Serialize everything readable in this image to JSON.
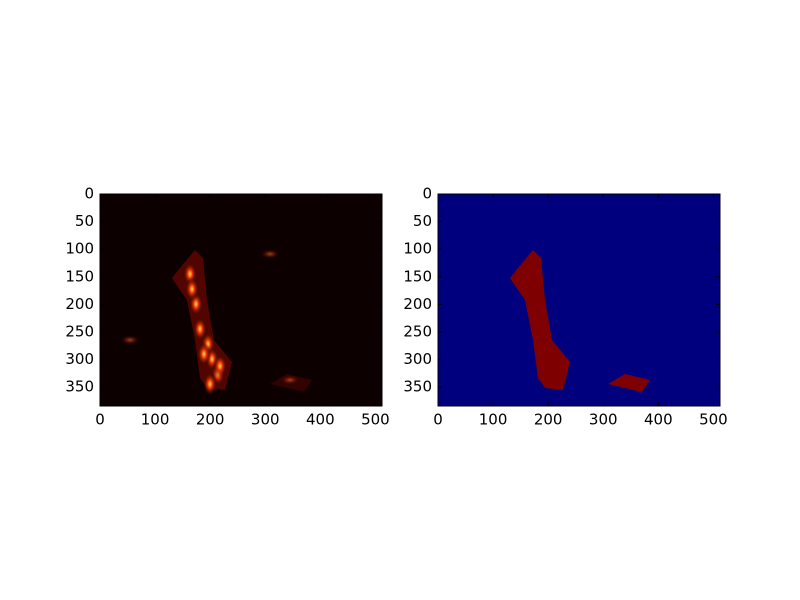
{
  "chart_data": [
    {
      "type": "image",
      "cmap": "hot",
      "xlim": [
        0,
        512
      ],
      "ylim": [
        384,
        0
      ],
      "xticks": [
        0,
        100,
        200,
        300,
        400,
        500
      ],
      "yticks": [
        0,
        50,
        100,
        150,
        200,
        250,
        300,
        350
      ]
    },
    {
      "type": "image",
      "cmap": "jet",
      "xlim": [
        0,
        512
      ],
      "ylim": [
        384,
        0
      ],
      "xticks": [
        0,
        100,
        200,
        300,
        400,
        500
      ],
      "yticks": [
        0,
        50,
        100,
        150,
        200,
        250,
        300,
        350
      ]
    }
  ]
}
